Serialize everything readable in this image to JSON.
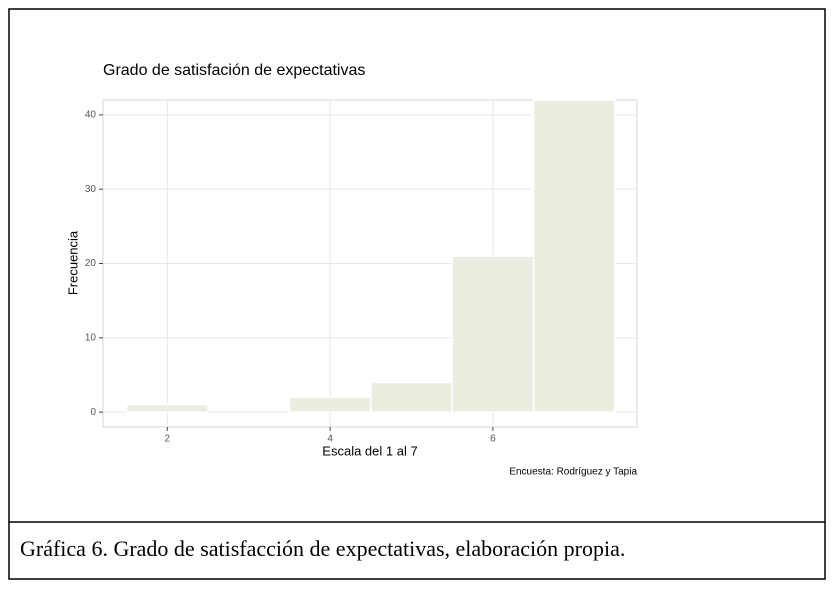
{
  "chart_data": {
    "type": "histogram",
    "title": "Grado de satisfación de expectativas",
    "x_label": "Escala del 1 al 7",
    "y_label": "Frecuencia",
    "source": "Encuesta: Rodríguez y Tapia",
    "bins": [
      1.5,
      2.5,
      3.5,
      4.5,
      5.5,
      6.5,
      7.5
    ],
    "values": [
      1,
      0,
      2,
      4,
      21,
      42
    ],
    "color": "#ecece0",
    "xlim": [
      1.21,
      7.77
    ],
    "xticks": [
      2,
      4,
      6
    ],
    "ylim": [
      -2.0,
      42.0
    ],
    "yticks": [
      0,
      10,
      20,
      30,
      40
    ],
    "grid": true
  },
  "caption": "Gráfica 6. Grado de satisfacción de expectativas, elaboración propia."
}
